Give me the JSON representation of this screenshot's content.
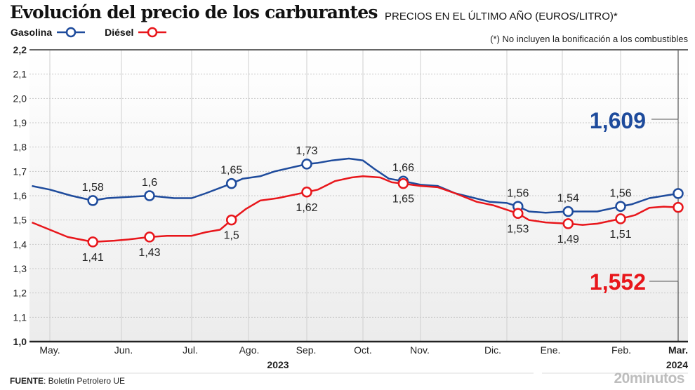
{
  "header": {
    "title": "Evolución del precio de los carburantes",
    "subtitle": "PRECIOS EN EL ÚLTIMO AÑO (EUROS/LITRO)*",
    "note": "(*) No incluyen la bonificación a los combustibles"
  },
  "footer": {
    "source_label": "FUENTE",
    "source_text": ": Boletín Petrolero UE",
    "brand": "20minutos"
  },
  "chart_data": {
    "type": "line",
    "title": "Evolución del precio de los carburantes",
    "subtitle": "PRECIOS EN EL ÚLTIMO AÑO (EUROS/LITRO)*",
    "xlabel": "",
    "ylabel": "",
    "ylim": [
      1.0,
      2.2
    ],
    "yticks": [
      "1,0",
      "1,1",
      "1,2",
      "1,3",
      "1,4",
      "1,5",
      "1,6",
      "1,7",
      "1,8",
      "1,9",
      "2,0",
      "2,1",
      "2,2"
    ],
    "ytick_values": [
      1.0,
      1.1,
      1.2,
      1.3,
      1.4,
      1.5,
      1.6,
      1.7,
      1.8,
      1.9,
      2.0,
      2.1,
      2.2
    ],
    "grid": true,
    "legend_position": "top-left",
    "x_months": [
      "May.",
      "Jun.",
      "Jul.",
      "Ago.",
      "Sep.",
      "Oct.",
      "Nov.",
      "Dic.",
      "Ene.",
      "Feb.",
      "Mar."
    ],
    "x_years": [
      {
        "label": "2023",
        "span": "May.–Nov."
      },
      {
        "label": "2024",
        "span": "Mar."
      }
    ],
    "month_index_range": [
      -0.25,
      10
    ],
    "series": [
      {
        "name": "Gasolina",
        "color": "#1e4b9c",
        "line": [
          [
            -0.25,
            1.64
          ],
          [
            0,
            1.625
          ],
          [
            0.3,
            1.6
          ],
          [
            0.6,
            1.58
          ],
          [
            0.8,
            1.59
          ],
          [
            1.4,
            1.6
          ],
          [
            1.75,
            1.59
          ],
          [
            2,
            1.59
          ],
          [
            2.25,
            1.61
          ],
          [
            2.7,
            1.65
          ],
          [
            2.9,
            1.67
          ],
          [
            3.2,
            1.68
          ],
          [
            3.45,
            1.7
          ],
          [
            4,
            1.73
          ],
          [
            4.2,
            1.735
          ],
          [
            4.45,
            1.745
          ],
          [
            4.75,
            1.753
          ],
          [
            5,
            1.745
          ],
          [
            5.2,
            1.71
          ],
          [
            5.45,
            1.67
          ],
          [
            5.7,
            1.66
          ],
          [
            6,
            1.645
          ],
          [
            6.2,
            1.64
          ],
          [
            6.4,
            1.61
          ],
          [
            6.8,
            1.575
          ],
          [
            7,
            1.57
          ],
          [
            7.2,
            1.556
          ],
          [
            7.4,
            1.535
          ],
          [
            7.7,
            1.53
          ],
          [
            8.1,
            1.535
          ],
          [
            8.6,
            1.535
          ],
          [
            9,
            1.556
          ],
          [
            9.2,
            1.565
          ],
          [
            9.5,
            1.59
          ],
          [
            10,
            1.609
          ]
        ],
        "markers": [
          {
            "x": 0.6,
            "value": 1.58,
            "label": "1,58"
          },
          {
            "x": 1.4,
            "value": 1.6,
            "label": "1,6"
          },
          {
            "x": 2.7,
            "value": 1.65,
            "label": "1,65"
          },
          {
            "x": 4,
            "value": 1.73,
            "label": "1,73"
          },
          {
            "x": 5.7,
            "value": 1.66,
            "label": "1,66"
          },
          {
            "x": 7.2,
            "value": 1.556,
            "label": "1,56"
          },
          {
            "x": 8.1,
            "value": 1.535,
            "label": "1,54"
          },
          {
            "x": 9,
            "value": 1.556,
            "label": "1,56"
          },
          {
            "x": 10,
            "value": 1.609,
            "label": ""
          }
        ],
        "final_value": "1,609"
      },
      {
        "name": "Diésel",
        "color": "#e8161b",
        "line": [
          [
            -0.25,
            1.49
          ],
          [
            0,
            1.46
          ],
          [
            0.25,
            1.43
          ],
          [
            0.6,
            1.41
          ],
          [
            0.9,
            1.415
          ],
          [
            1.1,
            1.42
          ],
          [
            1.4,
            1.43
          ],
          [
            1.65,
            1.435
          ],
          [
            2,
            1.435
          ],
          [
            2.25,
            1.45
          ],
          [
            2.5,
            1.46
          ],
          [
            2.7,
            1.5
          ],
          [
            2.95,
            1.545
          ],
          [
            3.2,
            1.58
          ],
          [
            3.5,
            1.59
          ],
          [
            4,
            1.615
          ],
          [
            4.2,
            1.625
          ],
          [
            4.5,
            1.66
          ],
          [
            4.8,
            1.675
          ],
          [
            5,
            1.68
          ],
          [
            5.3,
            1.675
          ],
          [
            5.5,
            1.655
          ],
          [
            5.7,
            1.65
          ],
          [
            6,
            1.64
          ],
          [
            6.2,
            1.635
          ],
          [
            6.4,
            1.61
          ],
          [
            6.65,
            1.575
          ],
          [
            6.85,
            1.56
          ],
          [
            7.2,
            1.527
          ],
          [
            7.4,
            1.5
          ],
          [
            7.7,
            1.49
          ],
          [
            8.1,
            1.485
          ],
          [
            8.35,
            1.48
          ],
          [
            8.6,
            1.485
          ],
          [
            9,
            1.505
          ],
          [
            9.25,
            1.52
          ],
          [
            9.5,
            1.55
          ],
          [
            9.75,
            1.555
          ],
          [
            10,
            1.552
          ]
        ],
        "markers": [
          {
            "x": 0.6,
            "value": 1.41,
            "label": "1,41"
          },
          {
            "x": 1.4,
            "value": 1.43,
            "label": "1,43"
          },
          {
            "x": 2.7,
            "value": 1.5,
            "label": "1,5"
          },
          {
            "x": 4,
            "value": 1.615,
            "label": "1,62"
          },
          {
            "x": 5.7,
            "value": 1.65,
            "label": "1,65"
          },
          {
            "x": 7.2,
            "value": 1.527,
            "label": "1,53"
          },
          {
            "x": 8.1,
            "value": 1.485,
            "label": "1,49"
          },
          {
            "x": 9,
            "value": 1.505,
            "label": "1,51"
          },
          {
            "x": 10,
            "value": 1.552,
            "label": ""
          }
        ],
        "final_value": "1,552"
      }
    ]
  }
}
